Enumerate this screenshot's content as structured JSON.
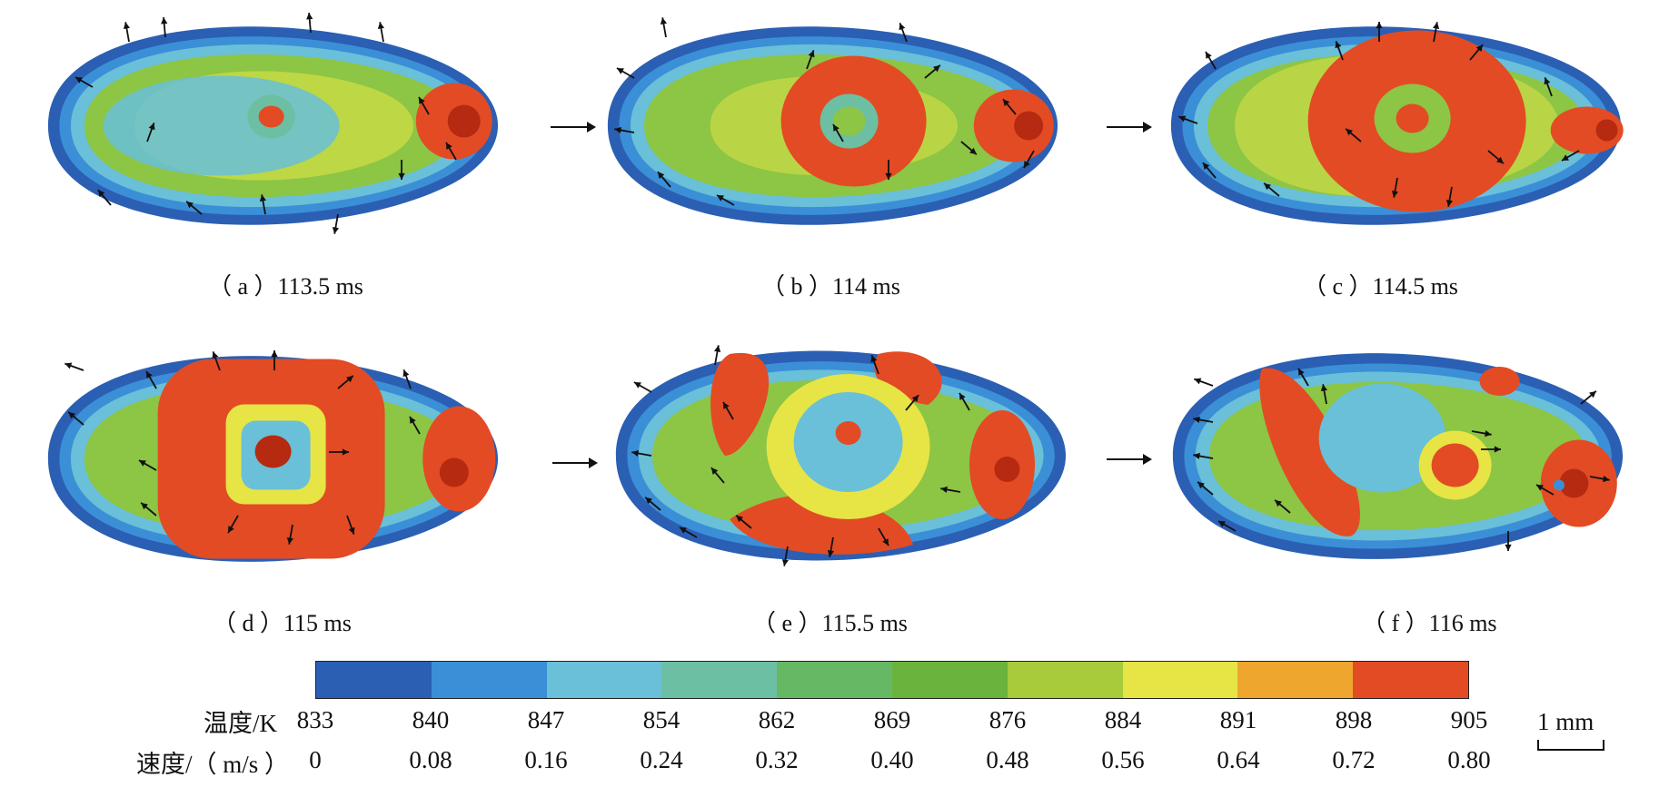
{
  "panels": [
    {
      "id": "a",
      "caption": "（ a ）113.5 ms",
      "core": "small"
    },
    {
      "id": "b",
      "caption": "（ b ）114 ms",
      "core": "ring"
    },
    {
      "id": "c",
      "caption": "（ c ）114.5 ms",
      "core": "ring-large"
    },
    {
      "id": "d",
      "caption": "（ d ）115 ms",
      "core": "square-ring"
    },
    {
      "id": "e",
      "caption": "（ e ）115.5 ms",
      "core": "split"
    },
    {
      "id": "f",
      "caption": "（ f ）116 ms",
      "core": "scattered"
    }
  ],
  "legend": {
    "temperature_label": "温度/K",
    "velocity_label": "速度/（ m/s ）",
    "temperature_ticks": [
      "833",
      "840",
      "847",
      "854",
      "862",
      "869",
      "876",
      "884",
      "891",
      "898",
      "905"
    ],
    "velocity_ticks": [
      "0",
      "0.08",
      "0.16",
      "0.24",
      "0.32",
      "0.40",
      "0.48",
      "0.56",
      "0.64",
      "0.72",
      "0.80"
    ],
    "colors": [
      "#2b5fb3",
      "#3b8fd6",
      "#69c0d8",
      "#6dbfa3",
      "#67b865",
      "#6ab33c",
      "#a7cb3a",
      "#e6e545",
      "#eea62e",
      "#e34b24"
    ]
  },
  "scale_bar": {
    "label": "1 mm"
  },
  "palette": {
    "outer": "#2b5fb3",
    "edge": "#3b8fd6",
    "cool": "#69c0d8",
    "mid": "#6dbfa3",
    "green": "#8dc545",
    "yellow": "#e6e545",
    "orange": "#eea62e",
    "hot": "#e34b24",
    "core": "#b52a10"
  }
}
